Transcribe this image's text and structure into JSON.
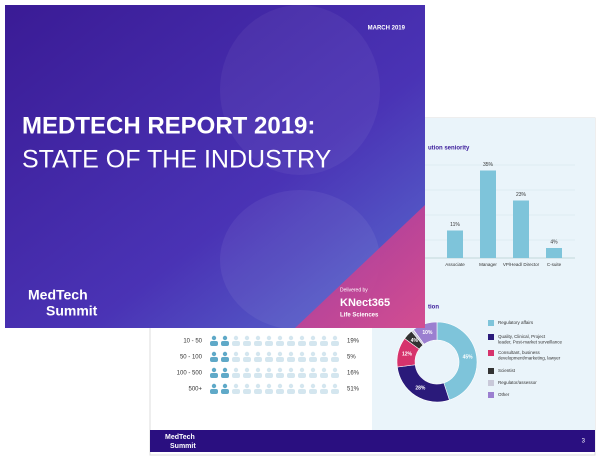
{
  "cover": {
    "date": "MARCH 2019",
    "title_line1": "MEDTECH REPORT 2019:",
    "title_line2": "STATE OF THE INDUSTRY",
    "brand": [
      "MedTech",
      "Summit"
    ],
    "delivered_by": "Delivered by",
    "partner": "KNect365",
    "partner_sub": "Life Sciences"
  },
  "inner_page": {
    "seniority_chart": {
      "type": "bar",
      "title": "ution seniority",
      "categories": [
        "Associate",
        "Manager",
        "VP/Head/ Director",
        "C-suite"
      ],
      "values": [
        11,
        35,
        23,
        4
      ],
      "value_labels": [
        "11%",
        "35%",
        "23%",
        "4%"
      ],
      "color": "#7ec4da"
    },
    "company_size": {
      "rows": [
        {
          "label": "10 - 50",
          "value": "19%"
        },
        {
          "label": "50 - 100",
          "value": "5%"
        },
        {
          "label": "100 - 500",
          "value": "16%"
        },
        {
          "label": "500+",
          "value": "51%"
        }
      ]
    },
    "function_chart": {
      "type": "pie",
      "title": "tion",
      "categories": [
        "Regulatory affairs",
        "Quality, Clinical, Project leader, Post-market surveillance",
        "Consultant, business development/marketing, lawyer",
        "Scientist",
        "Regulator/assessor",
        "Other"
      ],
      "values": [
        45,
        28,
        12,
        4,
        1,
        10
      ],
      "value_labels": [
        "45%",
        "28%",
        "12%",
        "4%",
        null,
        "10%"
      ],
      "colors": [
        "#7ec4da",
        "#2a1a7a",
        "#d6336c",
        "#333333",
        "#c9c9d9",
        "#9b7fd0"
      ]
    },
    "footer": {
      "brand": [
        "MedTech",
        "Summit"
      ],
      "page": "3"
    }
  }
}
